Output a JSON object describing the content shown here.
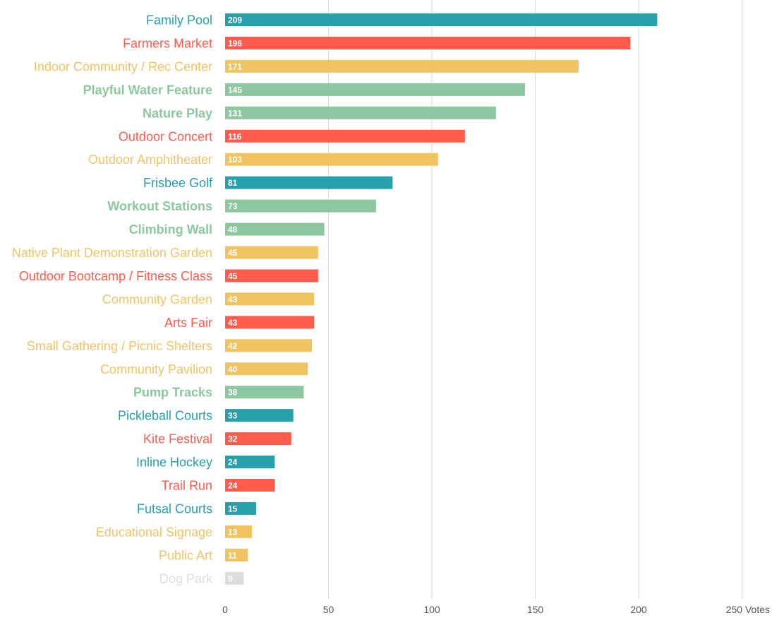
{
  "chart_data": {
    "type": "bar",
    "orientation": "horizontal",
    "xlim": [
      0,
      250
    ],
    "x_ticks": [
      0,
      50,
      100,
      150,
      200,
      250
    ],
    "x_tick_labels": [
      "0",
      "50",
      "100",
      "150",
      "200",
      "250 Votes"
    ],
    "grid": true,
    "colors": {
      "teal": "#26a0ab",
      "red": "#ff5c4d",
      "yellow": "#f1c463",
      "green": "#8dc79f",
      "gray": "#dddddd"
    },
    "items": [
      {
        "label": "Family Pool",
        "value": 209,
        "color": "teal",
        "bold": false
      },
      {
        "label": "Farmers Market",
        "value": 196,
        "color": "red",
        "bold": false
      },
      {
        "label": "Indoor Community / Rec Center",
        "value": 171,
        "color": "yellow",
        "bold": false
      },
      {
        "label": "Playful Water Feature",
        "value": 145,
        "color": "green",
        "bold": true
      },
      {
        "label": "Nature Play",
        "value": 131,
        "color": "green",
        "bold": true
      },
      {
        "label": "Outdoor Concert",
        "value": 116,
        "color": "red",
        "bold": false
      },
      {
        "label": "Outdoor Amphitheater",
        "value": 103,
        "color": "yellow",
        "bold": false
      },
      {
        "label": "Frisbee Golf",
        "value": 81,
        "color": "teal",
        "bold": false
      },
      {
        "label": "Workout Stations",
        "value": 73,
        "color": "green",
        "bold": true
      },
      {
        "label": "Climbing Wall",
        "value": 48,
        "color": "green",
        "bold": true
      },
      {
        "label": "Native Plant Demonstration Garden",
        "value": 45,
        "color": "yellow",
        "bold": false
      },
      {
        "label": "Outdoor Bootcamp / Fitness Class",
        "value": 45,
        "color": "red",
        "bold": false
      },
      {
        "label": "Community Garden",
        "value": 43,
        "color": "yellow",
        "bold": false
      },
      {
        "label": "Arts Fair",
        "value": 43,
        "color": "red",
        "bold": false
      },
      {
        "label": "Small Gathering / Picnic Shelters",
        "value": 42,
        "color": "yellow",
        "bold": false
      },
      {
        "label": "Community Pavilion",
        "value": 40,
        "color": "yellow",
        "bold": false
      },
      {
        "label": "Pump Tracks",
        "value": 38,
        "color": "green",
        "bold": true
      },
      {
        "label": "Pickleball Courts",
        "value": 33,
        "color": "teal",
        "bold": false
      },
      {
        "label": "Kite Festival",
        "value": 32,
        "color": "red",
        "bold": false
      },
      {
        "label": "Inline Hockey",
        "value": 24,
        "color": "teal",
        "bold": false
      },
      {
        "label": "Trail Run",
        "value": 24,
        "color": "red",
        "bold": false
      },
      {
        "label": "Futsal Courts",
        "value": 15,
        "color": "teal",
        "bold": false
      },
      {
        "label": "Educational Signage",
        "value": 13,
        "color": "yellow",
        "bold": false
      },
      {
        "label": "Public Art",
        "value": 11,
        "color": "yellow",
        "bold": false
      },
      {
        "label": "Dog Park",
        "value": 9,
        "color": "gray",
        "bold": false
      }
    ]
  }
}
